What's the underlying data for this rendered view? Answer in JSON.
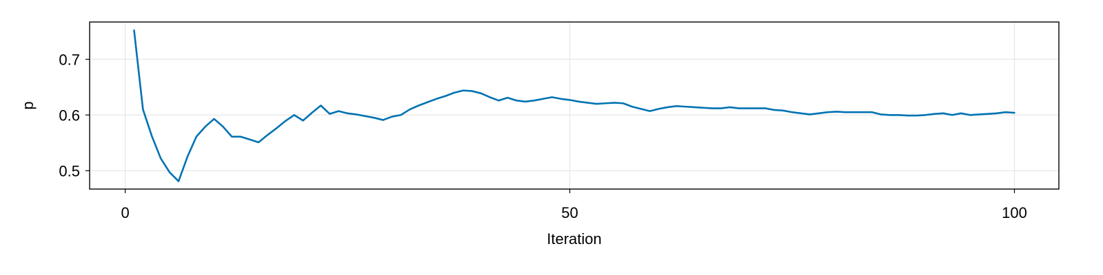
{
  "chart_data": {
    "type": "line",
    "title": "",
    "xlabel": "Iteration",
    "ylabel": "p",
    "xlim": [
      -4,
      105
    ],
    "ylim": [
      0.467,
      0.767
    ],
    "x_ticks": [
      0,
      50,
      100
    ],
    "x_tick_labels": [
      "0",
      "50",
      "100"
    ],
    "y_ticks": [
      0.5,
      0.6,
      0.7
    ],
    "y_tick_labels": [
      "0.5",
      "0.6",
      "0.7"
    ],
    "grid": true,
    "legend": "none",
    "series": [
      {
        "color": "#0072b2",
        "x": [
          1,
          2,
          3,
          4,
          5,
          6,
          7,
          8,
          9,
          10,
          11,
          12,
          13,
          14,
          15,
          16,
          17,
          18,
          19,
          20,
          21,
          22,
          23,
          24,
          25,
          26,
          27,
          28,
          29,
          30,
          31,
          32,
          33,
          34,
          35,
          36,
          37,
          38,
          39,
          40,
          41,
          42,
          43,
          44,
          45,
          46,
          47,
          48,
          49,
          50,
          51,
          52,
          53,
          54,
          55,
          56,
          57,
          58,
          59,
          60,
          61,
          62,
          63,
          64,
          65,
          66,
          67,
          68,
          69,
          70,
          71,
          72,
          73,
          74,
          75,
          76,
          77,
          78,
          79,
          80,
          81,
          82,
          83,
          84,
          85,
          86,
          87,
          88,
          89,
          90,
          91,
          92,
          93,
          94,
          95,
          96,
          97,
          98,
          99,
          100
        ],
        "y": [
          0.752,
          0.61,
          0.562,
          0.522,
          0.497,
          0.481,
          0.525,
          0.561,
          0.579,
          0.593,
          0.579,
          0.561,
          0.561,
          0.556,
          0.551,
          0.564,
          0.576,
          0.589,
          0.6,
          0.59,
          0.604,
          0.617,
          0.602,
          0.607,
          0.603,
          0.601,
          0.598,
          0.595,
          0.591,
          0.597,
          0.6,
          0.61,
          0.617,
          0.623,
          0.629,
          0.634,
          0.64,
          0.644,
          0.643,
          0.639,
          0.632,
          0.626,
          0.631,
          0.626,
          0.624,
          0.626,
          0.629,
          0.632,
          0.629,
          0.627,
          0.624,
          0.622,
          0.62,
          0.621,
          0.622,
          0.621,
          0.615,
          0.611,
          0.607,
          0.611,
          0.614,
          0.616,
          0.615,
          0.614,
          0.613,
          0.612,
          0.612,
          0.614,
          0.612,
          0.612,
          0.612,
          0.612,
          0.609,
          0.608,
          0.605,
          0.603,
          0.601,
          0.603,
          0.605,
          0.606,
          0.605,
          0.605,
          0.605,
          0.605,
          0.601,
          0.6,
          0.6,
          0.599,
          0.599,
          0.6,
          0.602,
          0.603,
          0.6,
          0.603,
          0.6,
          0.601,
          0.602,
          0.603,
          0.605,
          0.604
        ]
      }
    ]
  }
}
